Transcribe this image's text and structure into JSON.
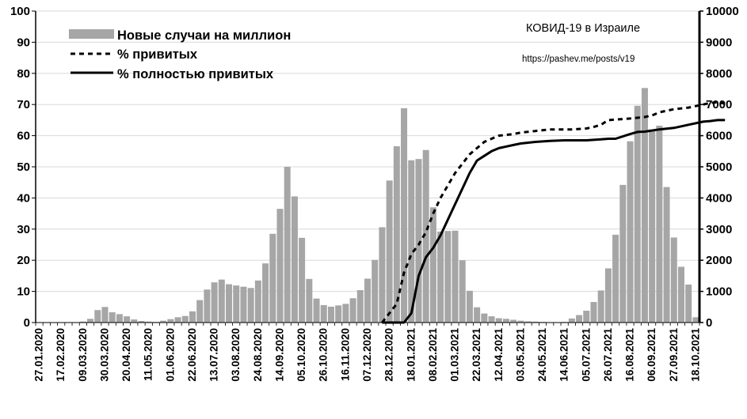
{
  "chart_data": {
    "type": "bar",
    "title": "КОВИД-19 в Израиле",
    "subtitle": "https://pashev.me/posts/v19",
    "legend_placement": "top-left",
    "grid": true,
    "colors": {
      "bars": "#a6a6a6",
      "lines": "#000000",
      "grid": "#d9d9d9"
    },
    "y_left": {
      "ylim": [
        0,
        100
      ],
      "ticks": [
        0,
        10,
        20,
        30,
        40,
        50,
        60,
        70,
        80,
        90,
        100
      ]
    },
    "y_right": {
      "ylim": [
        0,
        10000
      ],
      "ticks": [
        0,
        1000,
        2000,
        3000,
        4000,
        5000,
        6000,
        7000,
        8000,
        9000,
        10000
      ]
    },
    "x_tick_labels": [
      "27.01.2020",
      "17.02.2020",
      "09.03.2020",
      "30.03.2020",
      "20.04.2020",
      "11.05.2020",
      "01.06.2020",
      "22.06.2020",
      "13.07.2020",
      "03.08.2020",
      "24.08.2020",
      "14.09.2020",
      "05.10.2020",
      "26.10.2020",
      "16.11.2020",
      "07.12.2020",
      "28.12.2020",
      "18.01.2021",
      "08.02.2021",
      "01.03.2021",
      "22.03.2021",
      "12.04.2021",
      "03.05.2021",
      "24.05.2021",
      "14.06.2021",
      "05.07.2021",
      "26.07.2021",
      "16.08.2021",
      "06.09.2021",
      "27.09.2021",
      "18.10.2021"
    ],
    "series": [
      {
        "name": "Новые случаи на миллион",
        "type": "bar",
        "axis": "right",
        "values": [
          0,
          0,
          0,
          0,
          0,
          10,
          30,
          120,
          400,
          500,
          330,
          270,
          200,
          100,
          50,
          30,
          20,
          60,
          110,
          170,
          210,
          360,
          720,
          1060,
          1290,
          1380,
          1230,
          1190,
          1150,
          1110,
          1350,
          1900,
          2850,
          3650,
          5000,
          4050,
          2720,
          1400,
          770,
          560,
          510,
          550,
          600,
          780,
          1040,
          1410,
          2010,
          3060,
          4560,
          5660,
          6880,
          5210,
          5250,
          5540,
          3700,
          2920,
          2940,
          2950,
          2000,
          1020,
          490,
          290,
          200,
          140,
          120,
          90,
          60,
          40,
          30,
          20,
          10,
          10,
          20,
          130,
          240,
          380,
          660,
          1030,
          1740,
          2820,
          4420,
          5820,
          6960,
          7530,
          6200,
          6320,
          4350,
          2730,
          1790,
          1220,
          170
        ]
      },
      {
        "name": "% привитых",
        "type": "line",
        "style": "dashed",
        "axis": "left",
        "points": [
          [
            47,
            0
          ],
          [
            49,
            6
          ],
          [
            50,
            16
          ],
          [
            51,
            22
          ],
          [
            52,
            25
          ],
          [
            53,
            29
          ],
          [
            54,
            35
          ],
          [
            55,
            40
          ],
          [
            56,
            44
          ],
          [
            57,
            48
          ],
          [
            58,
            51
          ],
          [
            59,
            54
          ],
          [
            60,
            56
          ],
          [
            61,
            58
          ],
          [
            62,
            59
          ],
          [
            63,
            60
          ],
          [
            65,
            60.5
          ],
          [
            66,
            61
          ],
          [
            68,
            61.5
          ],
          [
            70,
            62
          ],
          [
            73,
            62
          ],
          [
            75,
            62.3
          ],
          [
            76,
            62.8
          ],
          [
            77,
            63.5
          ],
          [
            78,
            65
          ],
          [
            81,
            65.5
          ],
          [
            83,
            66
          ],
          [
            84,
            66.5
          ],
          [
            85,
            67.5
          ],
          [
            86,
            68
          ],
          [
            87,
            68.5
          ],
          [
            89,
            69
          ],
          [
            91,
            70
          ],
          [
            92,
            70.5
          ],
          [
            93,
            70.7
          ],
          [
            94,
            70.3
          ]
        ]
      },
      {
        "name": "% полностью привитых",
        "type": "line",
        "style": "solid",
        "axis": "left",
        "points": [
          [
            47,
            0
          ],
          [
            49,
            0
          ],
          [
            50,
            0
          ],
          [
            51,
            3
          ],
          [
            52,
            15
          ],
          [
            53,
            21
          ],
          [
            54,
            24
          ],
          [
            55,
            28
          ],
          [
            56,
            33
          ],
          [
            57,
            38
          ],
          [
            58,
            43
          ],
          [
            59,
            48
          ],
          [
            60,
            52
          ],
          [
            61,
            53.5
          ],
          [
            62,
            55
          ],
          [
            63,
            56
          ],
          [
            65,
            57
          ],
          [
            66,
            57.5
          ],
          [
            68,
            58
          ],
          [
            70,
            58.3
          ],
          [
            72,
            58.5
          ],
          [
            75,
            58.5
          ],
          [
            77,
            58.8
          ],
          [
            78,
            59
          ],
          [
            79,
            59
          ],
          [
            81,
            60.5
          ],
          [
            82,
            61.2
          ],
          [
            83,
            61.3
          ],
          [
            85,
            62
          ],
          [
            87,
            62.5
          ],
          [
            89,
            63.5
          ],
          [
            91,
            64.5
          ],
          [
            92,
            64.7
          ],
          [
            93,
            65
          ],
          [
            94,
            65
          ]
        ]
      }
    ],
    "legend": [
      "Новые случаи на миллион",
      "% привитых",
      "% полностью привитых"
    ]
  }
}
